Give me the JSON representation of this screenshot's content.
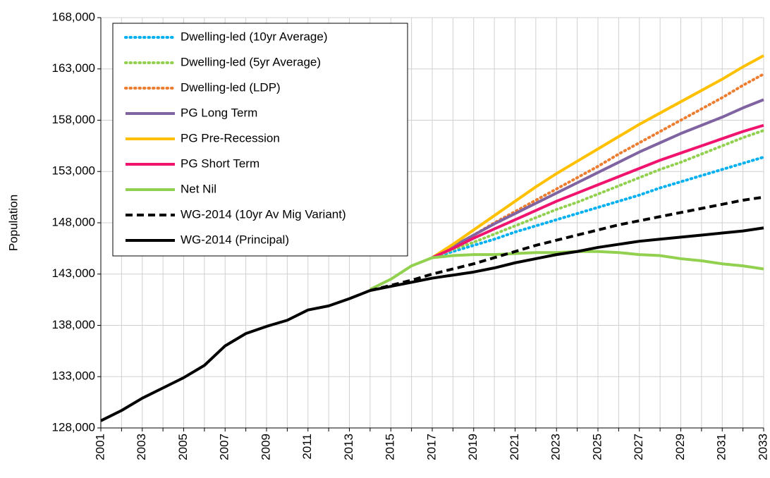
{
  "chart_data": {
    "type": "line",
    "y_label": "Population",
    "categories": [
      "2001",
      null,
      "2003",
      null,
      "2005",
      null,
      "2007",
      null,
      "2009",
      null,
      "2011",
      null,
      "2013",
      null,
      "2015",
      null,
      "2017",
      null,
      "2019",
      null,
      "2021",
      null,
      "2023",
      null,
      "2025",
      null,
      "2027",
      null,
      "2029",
      null,
      "2031",
      null,
      "2033"
    ],
    "ylim": [
      128000,
      168000
    ],
    "yticks": [
      {
        "value": 128000,
        "label": "128,000"
      },
      {
        "value": 133000,
        "label": "133,000"
      },
      {
        "value": 138000,
        "label": "138,000"
      },
      {
        "value": 143000,
        "label": "143,000"
      },
      {
        "value": 148000,
        "label": "148,000"
      },
      {
        "value": 153000,
        "label": "153,000"
      },
      {
        "value": 158000,
        "label": "158,000"
      },
      {
        "value": 163000,
        "label": "163,000"
      },
      {
        "value": 168000,
        "label": "168,000"
      }
    ],
    "grid": true,
    "legend": "upper left",
    "series": [
      {
        "name": "Dwelling-led (10yr Average)",
        "color": "#00b0f0",
        "style": "dotted",
        "values": [
          null,
          null,
          null,
          null,
          null,
          null,
          null,
          null,
          null,
          null,
          null,
          null,
          null,
          null,
          null,
          null,
          144600,
          145200,
          145800,
          146400,
          147100,
          147700,
          148300,
          148900,
          149500,
          150100,
          150700,
          151400,
          152000,
          152600,
          153200,
          153800,
          154400
        ]
      },
      {
        "name": "Dwelling-led (5yr Average)",
        "color": "#92d050",
        "style": "dotted",
        "values": [
          null,
          null,
          null,
          null,
          null,
          null,
          null,
          null,
          null,
          null,
          null,
          null,
          null,
          null,
          null,
          null,
          144600,
          145400,
          146100,
          146900,
          147700,
          148500,
          149300,
          150000,
          150800,
          151600,
          152400,
          153200,
          153900,
          154700,
          155500,
          156300,
          157000
        ]
      },
      {
        "name": "Dwelling-led (LDP)",
        "color": "#ed7d31",
        "style": "dotted",
        "values": [
          null,
          null,
          null,
          null,
          null,
          null,
          null,
          null,
          null,
          null,
          null,
          null,
          null,
          null,
          null,
          null,
          144600,
          145700,
          146800,
          148000,
          149100,
          150200,
          151300,
          152400,
          153500,
          154700,
          155800,
          156900,
          158000,
          159100,
          160200,
          161400,
          162500
        ]
      },
      {
        "name": "PG Long Term",
        "color": "#8064a2",
        "style": "solid",
        "values": [
          null,
          null,
          null,
          null,
          null,
          null,
          null,
          null,
          null,
          null,
          null,
          null,
          null,
          null,
          null,
          null,
          144600,
          145700,
          146800,
          147900,
          148900,
          149900,
          150900,
          151900,
          152900,
          153900,
          154900,
          155800,
          156700,
          157500,
          158300,
          159200,
          160000
        ]
      },
      {
        "name": "PG Pre-Recession",
        "color": "#ffc000",
        "style": "solid",
        "values": [
          null,
          null,
          null,
          null,
          null,
          null,
          null,
          null,
          null,
          null,
          null,
          null,
          null,
          null,
          null,
          null,
          144600,
          145900,
          147300,
          148700,
          150100,
          151500,
          152800,
          154000,
          155200,
          156400,
          157600,
          158700,
          159800,
          160900,
          162000,
          163200,
          164300
        ]
      },
      {
        "name": "PG Short Term",
        "color": "#f0146e",
        "style": "solid",
        "values": [
          null,
          null,
          null,
          null,
          null,
          null,
          null,
          null,
          null,
          null,
          null,
          null,
          null,
          null,
          null,
          null,
          144600,
          145500,
          146500,
          147400,
          148300,
          149200,
          150100,
          150900,
          151700,
          152500,
          153300,
          154100,
          154800,
          155500,
          156200,
          156900,
          157500
        ]
      },
      {
        "name": "Net Nil",
        "color": "#92d050",
        "style": "solid",
        "values": [
          null,
          null,
          null,
          null,
          null,
          null,
          null,
          null,
          null,
          null,
          null,
          null,
          null,
          141500,
          142500,
          143800,
          144600,
          144800,
          144900,
          144900,
          145000,
          145100,
          145100,
          145200,
          145200,
          145100,
          144900,
          144800,
          144500,
          144300,
          144000,
          143800,
          143500
        ]
      },
      {
        "name": "WG-2014 (10yr Av Mig Variant)",
        "color": "#000000",
        "style": "dashed",
        "values": [
          null,
          null,
          null,
          null,
          null,
          null,
          null,
          null,
          null,
          null,
          null,
          null,
          null,
          141400,
          141900,
          142400,
          143000,
          143500,
          144000,
          144600,
          145200,
          145800,
          146300,
          146800,
          147300,
          147800,
          148200,
          148600,
          149000,
          149400,
          149800,
          150200,
          150500
        ]
      },
      {
        "name": "WG-2014 (Principal)",
        "color": "#000000",
        "style": "solid",
        "values": [
          128700,
          129700,
          130900,
          131900,
          132900,
          134100,
          136000,
          137200,
          137900,
          138500,
          139500,
          139900,
          140600,
          141400,
          141800,
          142200,
          142600,
          142900,
          143200,
          143600,
          144100,
          144500,
          144900,
          145200,
          145600,
          145900,
          146200,
          146400,
          146600,
          146800,
          147000,
          147200,
          147500
        ]
      }
    ]
  }
}
